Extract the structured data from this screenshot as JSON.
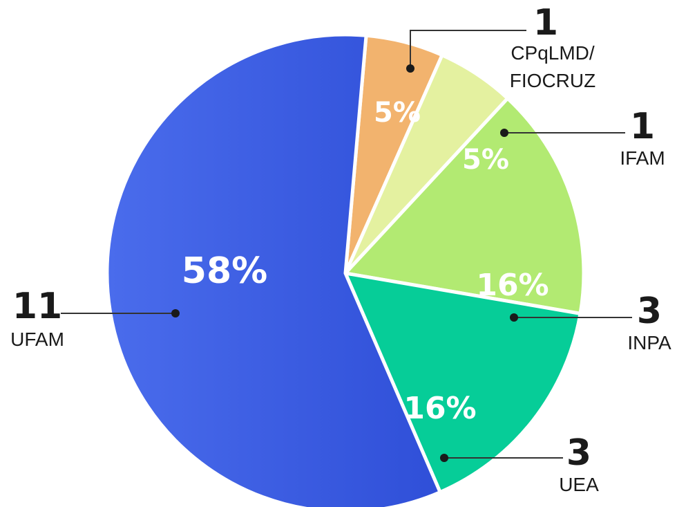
{
  "chart_data": {
    "type": "pie",
    "slices": [
      {
        "label": "CPqLMD/ FIOCRUZ",
        "label_lines": [
          "CPqLMD/",
          "FIOCRUZ"
        ],
        "count": "1",
        "percent": "5%",
        "value": 1,
        "color": "#f2b36e"
      },
      {
        "label": "IFAM",
        "label_lines": [
          "IFAM"
        ],
        "count": "1",
        "percent": "5%",
        "value": 1,
        "color": "#e4f1a0"
      },
      {
        "label": "INPA",
        "label_lines": [
          "INPA"
        ],
        "count": "3",
        "percent": "16%",
        "value": 3,
        "color": "#b2ea72"
      },
      {
        "label": "UEA",
        "label_lines": [
          "UEA"
        ],
        "count": "3",
        "percent": "16%",
        "value": 3,
        "color": "#06cd98"
      },
      {
        "label": "UFAM",
        "label_lines": [
          "UFAM"
        ],
        "count": "11",
        "percent": "58%",
        "value": 11,
        "color": "#3c5fe6"
      }
    ],
    "legend": "none",
    "slice_border_color": "#ffffff",
    "dot_color": "#1a1a1a",
    "leader_line_color": "#333333"
  }
}
